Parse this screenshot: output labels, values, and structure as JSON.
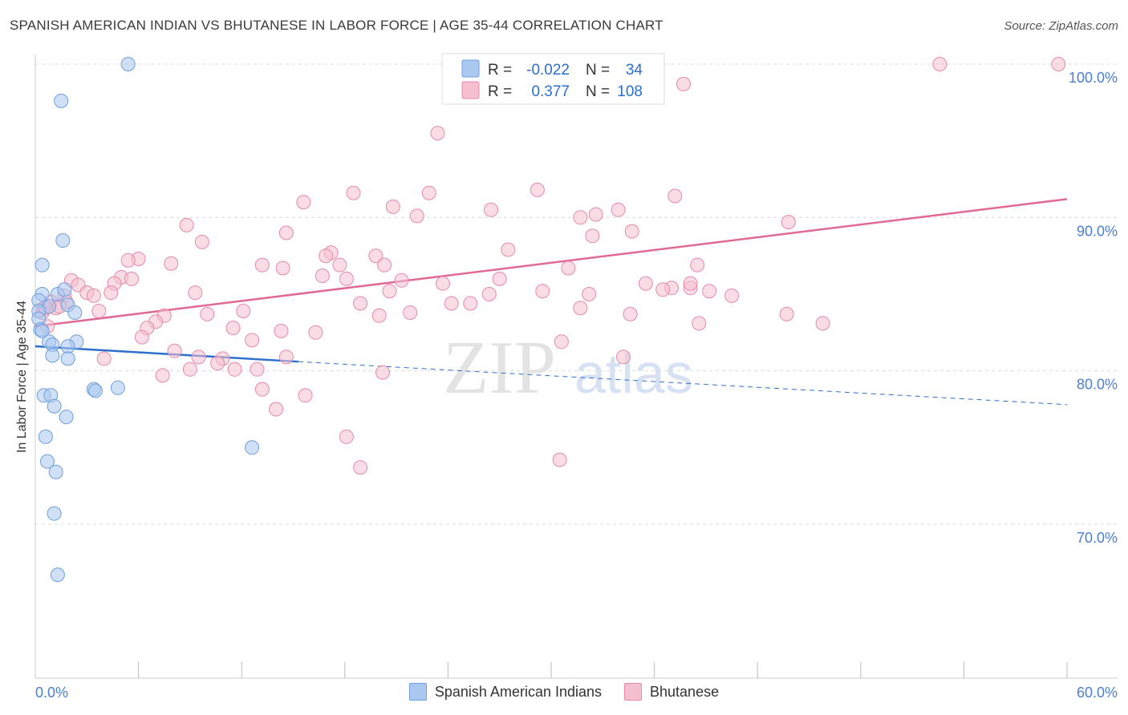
{
  "title": "SPANISH AMERICAN INDIAN VS BHUTANESE IN LABOR FORCE | AGE 35-44 CORRELATION CHART",
  "source": "Source: ZipAtlas.com",
  "watermark": {
    "zip": "ZIP",
    "atlas": "atlas"
  },
  "colors": {
    "blue_fill": "#aac8f0",
    "blue_stroke": "#6f9fdc",
    "blue_line": "#2c6fce",
    "pink_fill": "#f6bfd0",
    "pink_stroke": "#e58aa8",
    "pink_line": "#e06a94",
    "tick_label": "#4a7fd4",
    "grid": "#dcdcdc"
  },
  "legend_stats": [
    {
      "r_label": "R =",
      "r_value": "-0.022",
      "n_label": "N =",
      "n_value": "34",
      "color": "blue"
    },
    {
      "r_label": "R =",
      "r_value": "0.377",
      "n_label": "N =",
      "n_value": "108",
      "color": "pink"
    }
  ],
  "chart_data": {
    "type": "scatter",
    "title": "SPANISH AMERICAN INDIAN VS BHUTANESE IN LABOR FORCE | AGE 35-44 CORRELATION CHART",
    "xlabel": "",
    "ylabel": "In Labor Force | Age 35-44",
    "xlim": [
      0,
      60
    ],
    "ylim": [
      60.5,
      103
    ],
    "x_tick_labels": [
      "0.0%",
      "60.0%"
    ],
    "y_ticks": [
      70,
      80,
      90,
      100
    ],
    "y_tick_labels": [
      "70.0%",
      "80.0%",
      "90.0%",
      "100.0%"
    ],
    "grid": "horizontal dashed",
    "legend_position": "bottom-center",
    "series": [
      {
        "name": "Spanish American Indians",
        "color": "blue",
        "trend": {
          "x0": 0,
          "y0": 81.6,
          "x1": 15.3,
          "y1": 80.6,
          "dashed_to_x": 60,
          "dashed_to_y": 77.8
        },
        "points": [
          [
            5.4,
            100.0
          ],
          [
            1.5,
            97.6
          ],
          [
            1.6,
            88.5
          ],
          [
            0.4,
            86.9
          ],
          [
            0.4,
            85.0
          ],
          [
            1.3,
            85.0
          ],
          [
            1.7,
            85.3
          ],
          [
            0.2,
            84.6
          ],
          [
            0.8,
            84.2
          ],
          [
            1.9,
            84.3
          ],
          [
            0.2,
            83.9
          ],
          [
            2.3,
            83.8
          ],
          [
            0.2,
            83.4
          ],
          [
            0.3,
            82.7
          ],
          [
            0.4,
            82.6
          ],
          [
            0.8,
            81.9
          ],
          [
            2.4,
            81.9
          ],
          [
            1.0,
            81.7
          ],
          [
            1.9,
            81.6
          ],
          [
            1.0,
            81.0
          ],
          [
            1.9,
            80.8
          ],
          [
            3.4,
            78.8
          ],
          [
            3.5,
            78.7
          ],
          [
            4.8,
            78.9
          ],
          [
            0.5,
            78.4
          ],
          [
            0.9,
            78.4
          ],
          [
            1.1,
            77.7
          ],
          [
            1.8,
            77.0
          ],
          [
            0.6,
            75.7
          ],
          [
            0.7,
            74.1
          ],
          [
            1.2,
            73.4
          ],
          [
            12.6,
            75.0
          ],
          [
            1.1,
            70.7
          ],
          [
            1.3,
            66.7
          ]
        ]
      },
      {
        "name": "Bhutanese",
        "color": "pink",
        "trend": {
          "x0": 0,
          "y0": 82.9,
          "x1": 60,
          "y1": 91.2
        },
        "points": [
          [
            52.6,
            100.0
          ],
          [
            59.5,
            100.0
          ],
          [
            37.7,
            98.7
          ],
          [
            23.4,
            95.5
          ],
          [
            29.2,
            91.8
          ],
          [
            22.9,
            91.6
          ],
          [
            18.5,
            91.6
          ],
          [
            37.2,
            91.4
          ],
          [
            15.6,
            91.0
          ],
          [
            20.8,
            90.7
          ],
          [
            26.5,
            90.5
          ],
          [
            22.2,
            90.1
          ],
          [
            32.6,
            90.2
          ],
          [
            33.9,
            90.5
          ],
          [
            31.7,
            90.0
          ],
          [
            43.8,
            89.7
          ],
          [
            8.8,
            89.5
          ],
          [
            14.6,
            89.0
          ],
          [
            34.7,
            89.1
          ],
          [
            9.7,
            88.4
          ],
          [
            32.4,
            88.8
          ],
          [
            27.5,
            87.9
          ],
          [
            17.2,
            87.7
          ],
          [
            16.9,
            87.5
          ],
          [
            19.8,
            87.5
          ],
          [
            6.0,
            87.3
          ],
          [
            5.4,
            87.2
          ],
          [
            7.9,
            87.0
          ],
          [
            13.2,
            86.9
          ],
          [
            14.4,
            86.7
          ],
          [
            17.7,
            86.9
          ],
          [
            20.3,
            86.9
          ],
          [
            31.0,
            86.7
          ],
          [
            38.5,
            86.9
          ],
          [
            16.7,
            86.2
          ],
          [
            18.1,
            86.0
          ],
          [
            5.0,
            86.1
          ],
          [
            5.6,
            86.0
          ],
          [
            2.1,
            85.9
          ],
          [
            21.3,
            85.9
          ],
          [
            4.6,
            85.7
          ],
          [
            27.0,
            86.0
          ],
          [
            23.7,
            85.7
          ],
          [
            35.5,
            85.7
          ],
          [
            37.0,
            85.4
          ],
          [
            38.1,
            85.4
          ],
          [
            2.5,
            85.6
          ],
          [
            3.0,
            85.1
          ],
          [
            4.4,
            85.1
          ],
          [
            9.3,
            85.1
          ],
          [
            20.6,
            85.2
          ],
          [
            29.5,
            85.2
          ],
          [
            39.2,
            85.2
          ],
          [
            26.4,
            85.0
          ],
          [
            32.2,
            85.0
          ],
          [
            36.5,
            85.3
          ],
          [
            38.1,
            85.7
          ],
          [
            40.5,
            84.9
          ],
          [
            1.7,
            84.9
          ],
          [
            3.4,
            84.9
          ],
          [
            0.9,
            84.5
          ],
          [
            1.8,
            84.5
          ],
          [
            18.9,
            84.4
          ],
          [
            24.2,
            84.4
          ],
          [
            25.3,
            84.4
          ],
          [
            0.5,
            84.1
          ],
          [
            1.2,
            84.1
          ],
          [
            3.7,
            83.9
          ],
          [
            10.0,
            83.7
          ],
          [
            12.1,
            83.9
          ],
          [
            20.0,
            83.6
          ],
          [
            21.8,
            83.8
          ],
          [
            43.7,
            83.7
          ],
          [
            31.7,
            84.1
          ],
          [
            34.6,
            83.7
          ],
          [
            7.5,
            83.6
          ],
          [
            0.7,
            82.9
          ],
          [
            7.0,
            83.2
          ],
          [
            6.5,
            82.8
          ],
          [
            11.5,
            82.8
          ],
          [
            14.3,
            82.6
          ],
          [
            16.3,
            82.5
          ],
          [
            38.6,
            83.1
          ],
          [
            45.8,
            83.1
          ],
          [
            6.2,
            82.2
          ],
          [
            12.6,
            82.0
          ],
          [
            30.6,
            81.9
          ],
          [
            8.1,
            81.3
          ],
          [
            9.5,
            80.9
          ],
          [
            10.9,
            80.8
          ],
          [
            10.6,
            80.5
          ],
          [
            14.6,
            80.9
          ],
          [
            34.2,
            80.9
          ],
          [
            9.0,
            80.1
          ],
          [
            11.6,
            80.1
          ],
          [
            12.9,
            80.1
          ],
          [
            4.0,
            80.8
          ],
          [
            7.4,
            79.7
          ],
          [
            20.2,
            79.9
          ],
          [
            13.2,
            78.8
          ],
          [
            15.7,
            78.4
          ],
          [
            14.0,
            77.5
          ],
          [
            18.1,
            75.7
          ],
          [
            30.5,
            74.2
          ],
          [
            18.9,
            73.7
          ],
          [
            0.4,
            83.8
          ],
          [
            0.6,
            84.1
          ],
          [
            1.4,
            84.2
          ]
        ]
      }
    ]
  }
}
